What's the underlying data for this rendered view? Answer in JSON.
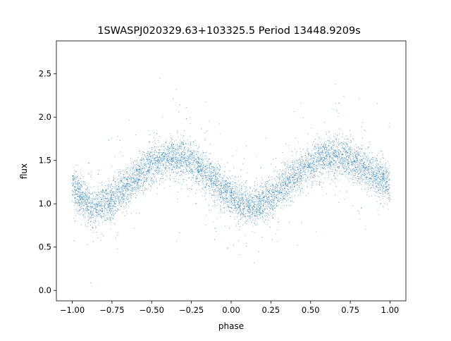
{
  "chart_data": {
    "type": "scatter",
    "title": "1SWASPJ020329.63+103325.5 Period 13448.9209s",
    "xlabel": "phase",
    "ylabel": "flux",
    "xlim": [
      -1.1,
      1.1
    ],
    "ylim": [
      -0.12,
      2.88
    ],
    "xticks": [
      -1.0,
      -0.75,
      -0.5,
      -0.25,
      0.0,
      0.25,
      0.5,
      0.75,
      1.0
    ],
    "xtick_labels": [
      "−1.00",
      "−0.75",
      "−0.50",
      "−0.25",
      "0.00",
      "0.25",
      "0.50",
      "0.75",
      "1.00"
    ],
    "yticks": [
      0.0,
      0.5,
      1.0,
      1.5,
      2.0,
      2.5
    ],
    "ytick_labels": [
      "0.0",
      "0.5",
      "1.0",
      "1.5",
      "2.0",
      "2.5"
    ],
    "grid": false,
    "marker_color": "#1f77b4",
    "series": [
      {
        "description_of_shape": "phase-folded light curve repeated over two cycles; minima near phase -0.85 and 0.15 at flux ~0.95, maxima near phase -0.35 and 0.65 at flux ~1.55",
        "x": [
          -1.0,
          -0.9,
          -0.85,
          -0.75,
          -0.6,
          -0.5,
          -0.4,
          -0.35,
          -0.25,
          -0.15,
          -0.05,
          0.05,
          0.15,
          0.25,
          0.4,
          0.5,
          0.6,
          0.65,
          0.75,
          0.85,
          0.95,
          1.0
        ],
        "y": [
          1.2,
          1.0,
          0.95,
          1.05,
          1.3,
          1.45,
          1.53,
          1.55,
          1.48,
          1.35,
          1.15,
          1.0,
          0.95,
          1.08,
          1.32,
          1.45,
          1.53,
          1.55,
          1.5,
          1.4,
          1.3,
          1.22
        ]
      }
    ]
  }
}
